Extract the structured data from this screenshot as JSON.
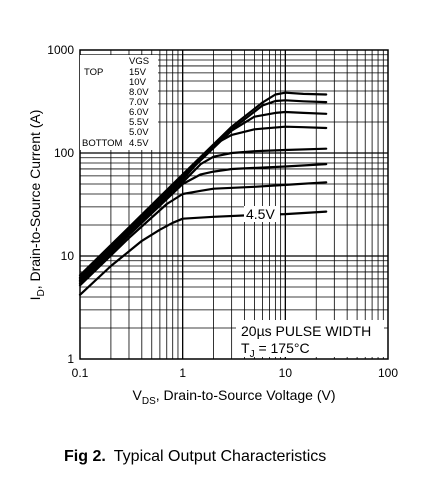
{
  "caption": {
    "figure_number": "Fig 2.",
    "title": "Typical Output Characteristics"
  },
  "chart_data": {
    "type": "line",
    "x_scale": "log",
    "y_scale": "log",
    "xlim": [
      0.1,
      100
    ],
    "ylim": [
      1,
      1000
    ],
    "x_ticks": [
      0.1,
      1,
      10,
      100
    ],
    "x_tick_labels": [
      "0.1",
      "1",
      "10",
      "100"
    ],
    "y_ticks": [
      1,
      10,
      100,
      1000
    ],
    "y_tick_labels": [
      "1",
      "10",
      "100",
      "1000"
    ],
    "xlabel": {
      "main": "V",
      "sub": "DS",
      "rest": ", Drain-to-Source Voltage (V)"
    },
    "ylabel": {
      "main": "I",
      "sub": "D",
      "rest": ",  Drain-to-Source Current (A)"
    },
    "grid": true,
    "legend": {
      "header": "VGS",
      "top_label": "TOP",
      "bottom_label": "BOTTOM",
      "entries": [
        "15V",
        "10V",
        "8.0V",
        "7.0V",
        "6.0V",
        "5.5V",
        "5.0V",
        "4.5V"
      ]
    },
    "annotations": {
      "curve_label": "4.5V",
      "pulse_width": "20µs PULSE WIDTH",
      "tj_main": "T",
      "tj_sub": "J",
      "tj_rest": " = 175°C"
    },
    "series": [
      {
        "name": "15V",
        "x": [
          0.1,
          0.3,
          1,
          3,
          6,
          8,
          10,
          15,
          25
        ],
        "y": [
          6.5,
          19,
          62,
          180,
          310,
          370,
          385,
          375,
          370
        ]
      },
      {
        "name": "10V",
        "x": [
          0.1,
          0.3,
          1,
          3,
          6,
          8,
          10,
          15,
          25
        ],
        "y": [
          6.2,
          18.5,
          60,
          170,
          290,
          320,
          325,
          318,
          312
        ]
      },
      {
        "name": "8.0V",
        "x": [
          0.1,
          0.3,
          1,
          3,
          5,
          8,
          10,
          15,
          25
        ],
        "y": [
          6,
          18,
          58,
          165,
          225,
          245,
          250,
          245,
          240
        ]
      },
      {
        "name": "7.0V",
        "x": [
          0.1,
          0.3,
          1,
          2,
          3,
          5,
          10,
          15,
          25
        ],
        "y": [
          5.8,
          17.5,
          55,
          120,
          150,
          170,
          180,
          178,
          175
        ]
      },
      {
        "name": "6.0V",
        "x": [
          0.1,
          0.3,
          1,
          1.5,
          2,
          3,
          5,
          10,
          25
        ],
        "y": [
          5.6,
          17,
          52,
          78,
          92,
          100,
          104,
          107,
          110
        ]
      },
      {
        "name": "5.5V",
        "x": [
          0.1,
          0.3,
          1,
          1.5,
          2,
          3,
          10,
          25
        ],
        "y": [
          5.4,
          16,
          50,
          62,
          66,
          70,
          74,
          78
        ]
      },
      {
        "name": "5.0V",
        "x": [
          0.1,
          0.3,
          0.7,
          1,
          1.5,
          2,
          5,
          10,
          25
        ],
        "y": [
          5.2,
          15,
          32,
          40,
          43,
          45,
          47,
          49,
          52
        ]
      },
      {
        "name": "4.5V",
        "x": [
          0.1,
          0.2,
          0.4,
          0.6,
          0.8,
          1,
          2,
          5,
          10,
          25
        ],
        "y": [
          4.2,
          8,
          14,
          18,
          21,
          23,
          24,
          25,
          25.5,
          27
        ]
      }
    ]
  }
}
